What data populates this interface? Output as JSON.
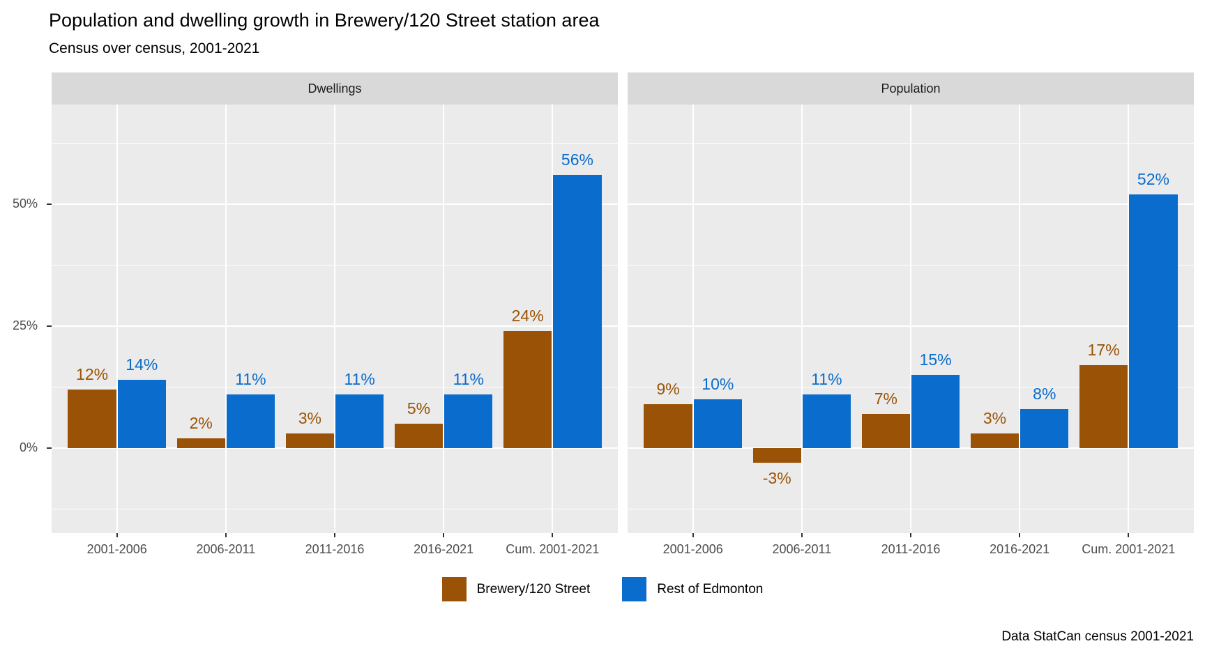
{
  "title": "Population and dwelling growth in Brewery/120 Street station area",
  "subtitle": "Census over census, 2001-2021",
  "caption": "Data StatCan census 2001-2021",
  "legend": {
    "items": [
      {
        "label": "Brewery/120 Street",
        "color": "#9A5306"
      },
      {
        "label": "Rest of Edmonton",
        "color": "#0A6CCC"
      }
    ]
  },
  "colors": {
    "panel_background": "#EBEBEB",
    "strip_background": "#D9D9D9",
    "gridline": "#FFFFFF",
    "axis_text": "#4D4D4D",
    "tick_mark": "#333333",
    "brewery": "#9A5306",
    "rest_of_edmonton": "#0A6CCC"
  },
  "chart_data": {
    "type": "bar",
    "layout": "two facets side by side, grouped (dodged) bars, shared y axis on left, legend bottom center, caption bottom right",
    "categories": [
      "2001-2006",
      "2006-2011",
      "2011-2016",
      "2016-2021",
      "Cum. 2001-2021"
    ],
    "facets": [
      {
        "label": "Dwellings",
        "series": [
          {
            "name": "Brewery/120 Street",
            "color": "#9A5306",
            "values": [
              12,
              2,
              3,
              5,
              24
            ]
          },
          {
            "name": "Rest of Edmonton",
            "color": "#0A6CCC",
            "values": [
              14,
              11,
              11,
              11,
              56
            ]
          }
        ]
      },
      {
        "label": "Population",
        "series": [
          {
            "name": "Brewery/120 Street",
            "color": "#9A5306",
            "values": [
              9,
              -3,
              7,
              3,
              17
            ]
          },
          {
            "name": "Rest of Edmonton",
            "color": "#0A6CCC",
            "values": [
              10,
              11,
              15,
              8,
              52
            ]
          }
        ]
      }
    ],
    "value_label_suffix": "%",
    "xlabel": "",
    "ylabel": "",
    "y_ticks": [
      {
        "value": 0,
        "label": "0%"
      },
      {
        "value": 25,
        "label": "25%"
      },
      {
        "value": 50,
        "label": "50%"
      }
    ],
    "ylim": [
      -17.4,
      70.4
    ],
    "grid": {
      "major_step": 25,
      "minor_step": 12.5,
      "on": true,
      "vertical_major_at_category_centers": true
    },
    "legend_position": "bottom-center"
  }
}
